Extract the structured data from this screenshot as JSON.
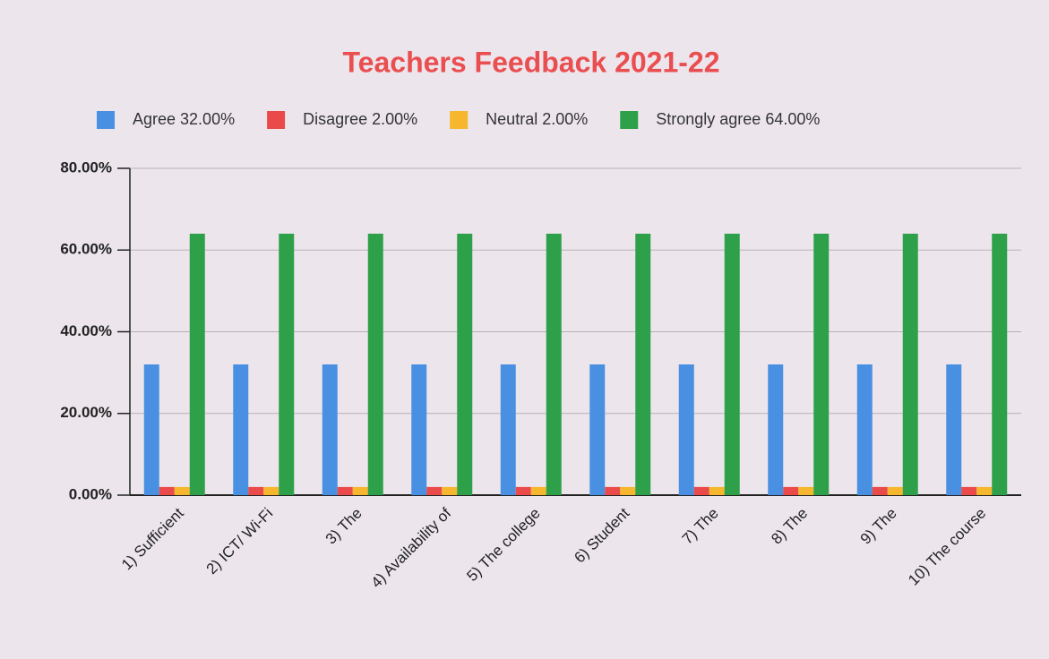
{
  "chart_data": {
    "type": "bar",
    "title": "Teachers Feedback 2021-22",
    "categories": [
      "1) Sufficient",
      "2) ICT/ Wi-Fi",
      "3) The",
      "4) Availability of",
      "5) The college",
      "6) Student",
      "7) The",
      "8) The",
      "9) The",
      "10) The course"
    ],
    "series": [
      {
        "name": "Agree 32.00%",
        "color": "#4a90e2",
        "values": [
          32,
          32,
          32,
          32,
          32,
          32,
          32,
          32,
          32,
          32
        ]
      },
      {
        "name": "Disagree 2.00%",
        "color": "#ea4a4a",
        "values": [
          2,
          2,
          2,
          2,
          2,
          2,
          2,
          2,
          2,
          2
        ]
      },
      {
        "name": "Neutral 2.00%",
        "color": "#f6b62e",
        "values": [
          2,
          2,
          2,
          2,
          2,
          2,
          2,
          2,
          2,
          2
        ]
      },
      {
        "name": "Strongly agree 64.00%",
        "color": "#2ea04a",
        "values": [
          64,
          64,
          64,
          64,
          64,
          64,
          64,
          64,
          64,
          64
        ]
      }
    ],
    "ylim": [
      0,
      80
    ],
    "yticks": [
      {
        "value": 0,
        "label": "0.00%"
      },
      {
        "value": 20,
        "label": "20.00%"
      },
      {
        "value": 40,
        "label": "40.00%"
      },
      {
        "value": 60,
        "label": "60.00%"
      },
      {
        "value": 80,
        "label": "80.00%"
      }
    ],
    "grid": true
  }
}
